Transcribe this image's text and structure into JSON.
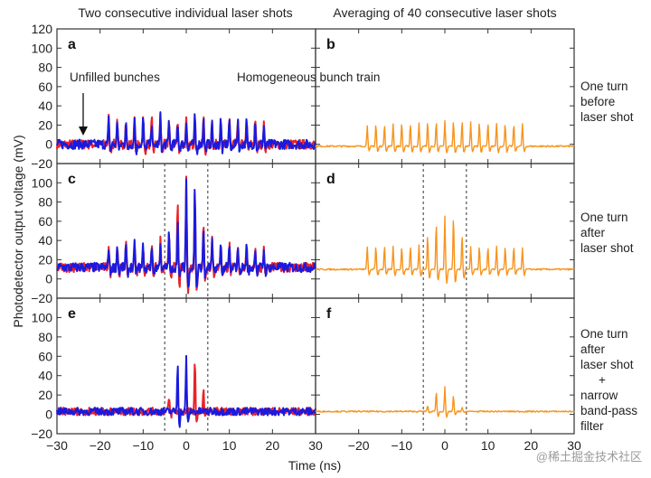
{
  "chart_data": {
    "type": "line",
    "column_titles": [
      "Two consecutive individual laser shots",
      "Averaging of 40 consecutive laser shots"
    ],
    "xlabel": "Time (ns)",
    "ylabel": "Photodetector output voltage (mV)",
    "xlim": [
      -30,
      30
    ],
    "ylim": [
      -20,
      120
    ],
    "xticks": [
      -30,
      -20,
      -10,
      0,
      10,
      20,
      30
    ],
    "yticks": [
      -20,
      0,
      20,
      40,
      60,
      80,
      100,
      120
    ],
    "grid": false,
    "colors": {
      "shot1": "#e8232a",
      "shot2": "#1a1adf",
      "average": "#f7941d"
    },
    "row_notes": [
      [
        "One turn",
        "before",
        "laser shot"
      ],
      [
        "One turn",
        "after",
        "laser shot"
      ],
      [
        "One turn",
        "after",
        "laser shot",
        "+",
        "narrow",
        "band-pass",
        "filter"
      ]
    ],
    "annotations": {
      "unfilled": "Unfilled bunches",
      "homogeneous": "Homogeneous bunch train"
    },
    "dashed_lines_x": [
      -5,
      5
    ],
    "panels": [
      {
        "label": "a",
        "col": 0,
        "row": 0,
        "dashed": false,
        "series": [
          {
            "color": "#e8232a",
            "baseline": 0,
            "noise": 5,
            "peaks": [
              [
                -18,
                28
              ],
              [
                -16,
                27
              ],
              [
                -14,
                26
              ],
              [
                -12,
                27
              ],
              [
                -10,
                28
              ],
              [
                -8,
                26
              ],
              [
                -6,
                30
              ],
              [
                -4,
                27
              ],
              [
                -2,
                24
              ],
              [
                0,
                25
              ],
              [
                2,
                30
              ],
              [
                4,
                28
              ],
              [
                6,
                26
              ],
              [
                8,
                27
              ],
              [
                10,
                29
              ],
              [
                12,
                27
              ],
              [
                14,
                25
              ],
              [
                16,
                29
              ],
              [
                18,
                22
              ]
            ]
          },
          {
            "color": "#1a1adf",
            "baseline": 0,
            "noise": 5,
            "peaks": [
              [
                -18,
                26
              ],
              [
                -16,
                27
              ],
              [
                -14,
                26
              ],
              [
                -12,
                26
              ],
              [
                -10,
                27
              ],
              [
                -8,
                25
              ],
              [
                -6,
                29
              ],
              [
                -4,
                26
              ],
              [
                -2,
                23
              ],
              [
                0,
                24
              ],
              [
                2,
                29
              ],
              [
                4,
                26
              ],
              [
                6,
                25
              ],
              [
                8,
                26
              ],
              [
                10,
                28
              ],
              [
                12,
                26
              ],
              [
                14,
                24
              ],
              [
                16,
                27
              ],
              [
                18,
                20
              ]
            ]
          }
        ]
      },
      {
        "label": "b",
        "col": 1,
        "row": 0,
        "dashed": false,
        "series": [
          {
            "color": "#f7941d",
            "baseline": -2,
            "noise": 0.8,
            "peaks": [
              [
                -18,
                22
              ],
              [
                -16,
                23
              ],
              [
                -14,
                23
              ],
              [
                -12,
                23
              ],
              [
                -10,
                24
              ],
              [
                -8,
                24
              ],
              [
                -6,
                24
              ],
              [
                -4,
                25
              ],
              [
                -2,
                25
              ],
              [
                0,
                26
              ],
              [
                2,
                26
              ],
              [
                4,
                26
              ],
              [
                6,
                25
              ],
              [
                8,
                25
              ],
              [
                10,
                24
              ],
              [
                12,
                24
              ],
              [
                14,
                24
              ],
              [
                16,
                23
              ],
              [
                18,
                23
              ]
            ]
          }
        ]
      },
      {
        "label": "c",
        "col": 0,
        "row": 1,
        "dashed": true,
        "series": [
          {
            "color": "#e8232a",
            "baseline": 12,
            "noise": 5,
            "peaks": [
              [
                -18,
                23
              ],
              [
                -16,
                24
              ],
              [
                -14,
                24
              ],
              [
                -12,
                25
              ],
              [
                -10,
                25
              ],
              [
                -8,
                26
              ],
              [
                -6,
                28
              ],
              [
                -4,
                34
              ],
              [
                -2,
                70
              ],
              [
                0,
                90
              ],
              [
                2,
                80
              ],
              [
                4,
                50
              ],
              [
                6,
                28
              ],
              [
                8,
                26
              ],
              [
                10,
                24
              ],
              [
                12,
                24
              ],
              [
                14,
                24
              ],
              [
                16,
                23
              ],
              [
                18,
                20
              ]
            ]
          },
          {
            "color": "#1a1adf",
            "baseline": 12,
            "noise": 5,
            "peaks": [
              [
                -18,
                22
              ],
              [
                -16,
                23
              ],
              [
                -14,
                23
              ],
              [
                -12,
                24
              ],
              [
                -10,
                24
              ],
              [
                -8,
                25
              ],
              [
                -6,
                26
              ],
              [
                -4,
                35
              ],
              [
                -2,
                50
              ],
              [
                0,
                92
              ],
              [
                2,
                85
              ],
              [
                4,
                42
              ],
              [
                6,
                26
              ],
              [
                8,
                24
              ],
              [
                10,
                23
              ],
              [
                12,
                23
              ],
              [
                14,
                23
              ],
              [
                16,
                22
              ],
              [
                18,
                19
              ]
            ]
          }
        ]
      },
      {
        "label": "d",
        "col": 1,
        "row": 1,
        "dashed": true,
        "series": [
          {
            "color": "#f7941d",
            "baseline": 10,
            "noise": 0.8,
            "peaks": [
              [
                -18,
                24
              ],
              [
                -16,
                24
              ],
              [
                -14,
                24
              ],
              [
                -12,
                24
              ],
              [
                -10,
                24
              ],
              [
                -8,
                24
              ],
              [
                -6,
                25
              ],
              [
                -4,
                36
              ],
              [
                -2,
                48
              ],
              [
                0,
                56
              ],
              [
                2,
                55
              ],
              [
                4,
                37
              ],
              [
                6,
                24
              ],
              [
                8,
                24
              ],
              [
                10,
                24
              ],
              [
                12,
                24
              ],
              [
                14,
                24
              ],
              [
                16,
                24
              ],
              [
                18,
                23
              ]
            ]
          }
        ]
      },
      {
        "label": "e",
        "col": 0,
        "row": 2,
        "dashed": true,
        "series": [
          {
            "color": "#e8232a",
            "baseline": 3,
            "noise": 4,
            "peaks": [
              [
                -4,
                15
              ],
              [
                2,
                53
              ],
              [
                4,
                21
              ]
            ]
          },
          {
            "color": "#1a1adf",
            "baseline": 3,
            "noise": 4,
            "peaks": [
              [
                -2,
                52
              ],
              [
                0,
                56
              ]
            ]
          }
        ]
      },
      {
        "label": "f",
        "col": 1,
        "row": 2,
        "dashed": true,
        "series": [
          {
            "color": "#f7941d",
            "baseline": 3,
            "noise": 0.7,
            "peaks": [
              [
                -4,
                6
              ],
              [
                -2,
                21
              ],
              [
                0,
                25
              ],
              [
                2,
                16
              ],
              [
                4,
                4
              ]
            ]
          }
        ]
      }
    ]
  },
  "watermark": "@稀土掘金技术社区"
}
